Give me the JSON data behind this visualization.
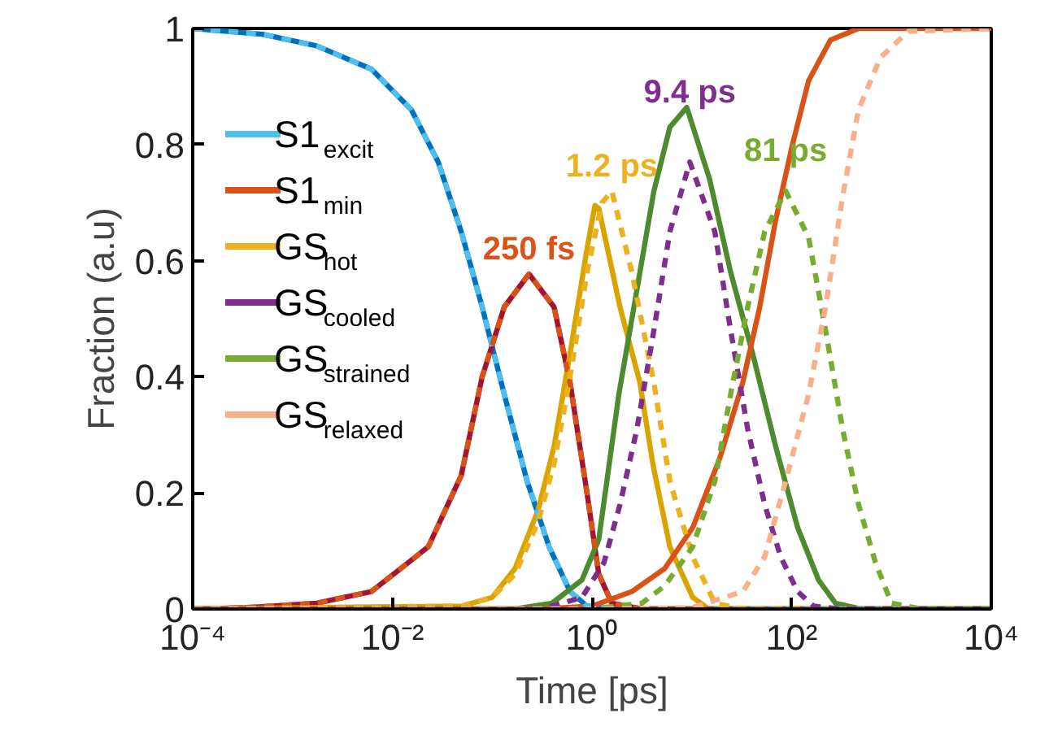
{
  "chart_data": {
    "type": "line",
    "xlabel": "Time [ps]",
    "ylabel": "Fraction (a.u)",
    "log": "x",
    "xlim": [
      0.0001,
      10000
    ],
    "ylim": [
      0,
      1
    ],
    "xticks": [
      {
        "value": 0.0001,
        "label": "10⁻⁴"
      },
      {
        "value": 0.01,
        "label": "10⁻²"
      },
      {
        "value": 1,
        "label": "10⁰"
      },
      {
        "value": 100,
        "label": "10²"
      },
      {
        "value": 10000,
        "label": "10⁴"
      }
    ],
    "yticks": [
      0,
      0.2,
      0.4,
      0.6,
      0.8,
      1
    ],
    "grid": false,
    "legend": "top left",
    "marker": "none",
    "series": [
      {
        "color": "#0072bd",
        "line_style": "solid",
        "x": [
          0.0001,
          0.0005,
          0.00174,
          0.00617,
          0.0155,
          0.0288,
          0.049,
          0.0794,
          0.132,
          0.224,
          0.372,
          0.603,
          0.891,
          1.58,
          10000
        ],
        "values": [
          1.0,
          0.99,
          0.97,
          0.93,
          0.86,
          0.77,
          0.65,
          0.52,
          0.37,
          0.22,
          0.107,
          0.03,
          0.005,
          0,
          0
        ]
      },
      {
        "color": "#a2142f",
        "line_style": "solid",
        "x": [
          0.0001,
          0.000316,
          0.00174,
          0.00617,
          0.0229,
          0.049,
          0.0794,
          0.132,
          0.234,
          0.417,
          0.603,
          0.891,
          1.17,
          1.58,
          3.16,
          10000
        ],
        "values": [
          0,
          0.002,
          0.01,
          0.03,
          0.107,
          0.23,
          0.4,
          0.52,
          0.577,
          0.52,
          0.39,
          0.2,
          0.06,
          0.01,
          0,
          0
        ]
      },
      {
        "color": "#d9a400",
        "line_style": "solid",
        "x": [
          0.0001,
          0.0501,
          0.1,
          0.17,
          0.288,
          0.417,
          0.603,
          0.891,
          1.07,
          1.17,
          1.91,
          3.02,
          4.07,
          6.03,
          10.2,
          14.8,
          10000
        ],
        "values": [
          0,
          0.005,
          0.02,
          0.07,
          0.17,
          0.28,
          0.44,
          0.62,
          0.695,
          0.69,
          0.52,
          0.39,
          0.25,
          0.107,
          0.02,
          0,
          0
        ]
      },
      {
        "color": "#4e8a2e",
        "line_style": "solid",
        "x": [
          0.0001,
          0.17,
          0.398,
          0.794,
          1.17,
          1.86,
          2.82,
          4.17,
          6.03,
          8.91,
          15.1,
          24.5,
          40.7,
          69.2,
          115,
          186,
          275,
          501,
          10000
        ],
        "values": [
          0,
          0,
          0.01,
          0.05,
          0.12,
          0.37,
          0.55,
          0.72,
          0.83,
          0.864,
          0.74,
          0.58,
          0.44,
          0.28,
          0.14,
          0.05,
          0.01,
          0,
          0
        ]
      },
      {
        "color": "#d95319",
        "line_style": "solid",
        "x": [
          0.0001,
          0.316,
          1,
          2.51,
          5.37,
          10.2,
          19.1,
          32.4,
          47.9,
          69.2,
          102,
          148,
          245,
          468,
          10000
        ],
        "values": [
          0,
          0,
          0.005,
          0.03,
          0.07,
          0.14,
          0.26,
          0.39,
          0.52,
          0.67,
          0.8,
          0.91,
          0.98,
          1.0,
          1.0
        ]
      },
      {
        "name": "S1$_{excit}$",
        "color": "#4dbeee",
        "line_style": "dashed",
        "x": [
          0.0001,
          0.0005,
          0.00174,
          0.00617,
          0.0155,
          0.0288,
          0.049,
          0.0794,
          0.132,
          0.224,
          0.372,
          0.603,
          0.891,
          1.58,
          10000
        ],
        "values": [
          1.0,
          0.99,
          0.97,
          0.93,
          0.86,
          0.77,
          0.65,
          0.52,
          0.37,
          0.22,
          0.107,
          0.03,
          0.005,
          0,
          0
        ]
      },
      {
        "name": "S1$_{min}$",
        "color": "#d95319",
        "line_style": "dashed",
        "x": [
          0.0001,
          0.000316,
          0.00174,
          0.00617,
          0.0229,
          0.049,
          0.0794,
          0.132,
          0.234,
          0.417,
          0.603,
          0.891,
          1.17,
          1.58,
          3.16,
          10000
        ],
        "values": [
          0,
          0.002,
          0.01,
          0.03,
          0.107,
          0.23,
          0.4,
          0.52,
          0.577,
          0.52,
          0.39,
          0.2,
          0.06,
          0.01,
          0,
          0
        ]
      },
      {
        "name": "GS$_{hot}$",
        "color": "#edb120",
        "line_style": "dashed",
        "x": [
          0.0001,
          0.0501,
          0.1,
          0.17,
          0.288,
          0.417,
          0.603,
          0.891,
          1.26,
          1.58,
          2.51,
          4.17,
          6.03,
          10.2,
          17,
          31.6,
          10000
        ],
        "values": [
          0,
          0.005,
          0.02,
          0.06,
          0.15,
          0.25,
          0.4,
          0.58,
          0.7,
          0.72,
          0.58,
          0.39,
          0.22,
          0.09,
          0.01,
          0,
          0
        ]
      },
      {
        "name": "GS$_{cooled}$",
        "color": "#7e2f8e",
        "line_style": "dashed",
        "x": [
          0.0001,
          0.316,
          0.794,
          1.32,
          1.91,
          2.82,
          4.17,
          6.03,
          9.55,
          17,
          24.5,
          36.3,
          53.7,
          77.6,
          115,
          166,
          316,
          10000
        ],
        "values": [
          0,
          0,
          0.02,
          0.08,
          0.18,
          0.31,
          0.48,
          0.65,
          0.77,
          0.65,
          0.48,
          0.31,
          0.18,
          0.09,
          0.03,
          0.005,
          0,
          0
        ]
      },
      {
        "name": "GS$_{strained}$",
        "color": "#77ac30",
        "line_style": "dashed",
        "x": [
          0.0001,
          1,
          3.16,
          5.37,
          10.2,
          17,
          24.5,
          36.3,
          53.7,
          87.1,
          148,
          219,
          324,
          468,
          692,
          1000,
          2000,
          10000
        ],
        "values": [
          0,
          0,
          0.01,
          0.04,
          0.107,
          0.22,
          0.37,
          0.52,
          0.65,
          0.72,
          0.64,
          0.48,
          0.31,
          0.18,
          0.08,
          0.01,
          0,
          0
        ]
      },
      {
        "name": "GS$_{relaxed}$",
        "color": "#f7b08a",
        "line_style": "dashed",
        "x": [
          0.0001,
          1,
          10,
          32.4,
          53.7,
          87.1,
          148,
          219,
          324,
          468,
          776,
          1480,
          10000
        ],
        "values": [
          0,
          0,
          0.002,
          0.03,
          0.09,
          0.22,
          0.37,
          0.52,
          0.71,
          0.86,
          0.95,
          0.995,
          1.0
        ]
      }
    ],
    "annotations": [
      {
        "text": "250 fs",
        "x": 0.234,
        "y": 0.577
      },
      {
        "text": "1.2 ps",
        "x": 1.58,
        "y": 0.72
      },
      {
        "text": "9.4 ps",
        "x": 9.55,
        "y": 0.77
      },
      {
        "text": "81 ps",
        "x": 87.1,
        "y": 0.72
      }
    ]
  }
}
